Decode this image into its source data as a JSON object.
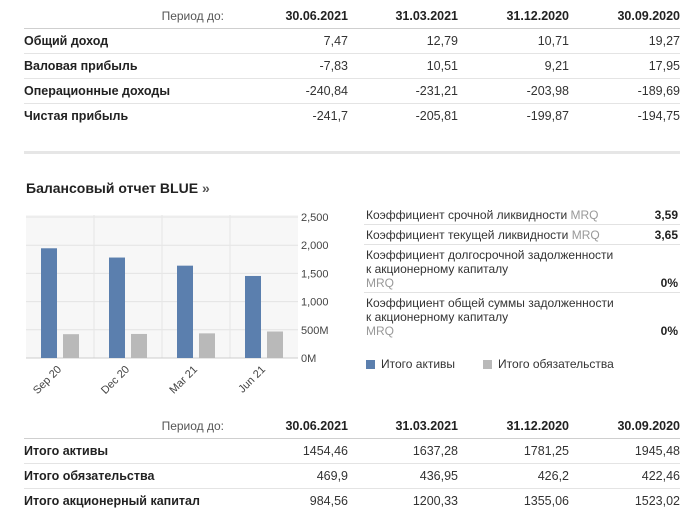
{
  "income": {
    "period_label": "Период до:",
    "dates": [
      "30.06.2021",
      "31.03.2021",
      "31.12.2020",
      "30.09.2020"
    ],
    "rows": [
      {
        "label": "Общий доход",
        "values": [
          "7,47",
          "12,79",
          "10,71",
          "19,27"
        ]
      },
      {
        "label": "Валовая прибыль",
        "values": [
          "-7,83",
          "10,51",
          "9,21",
          "17,95"
        ]
      },
      {
        "label": "Операционные доходы",
        "values": [
          "-240,84",
          "-231,21",
          "-203,98",
          "-189,69"
        ]
      },
      {
        "label": "Чистая прибыль",
        "values": [
          "-241,7",
          "-205,81",
          "-199,87",
          "-194,75"
        ]
      }
    ]
  },
  "balance_section": {
    "title": "Балансовый отчет BLUE",
    "chevron": "»"
  },
  "chart_data": {
    "type": "bar",
    "categories": [
      "Sep 20",
      "Dec 20",
      "Mar 21",
      "Jun 21"
    ],
    "series": [
      {
        "name": "Итого активы",
        "color": "#5b7fae",
        "values": [
          1945.48,
          1781.25,
          1637.28,
          1454.46
        ]
      },
      {
        "name": "Итого обязательства",
        "color": "#b9b9b9",
        "values": [
          422.46,
          426.2,
          436.95,
          469.9
        ]
      }
    ],
    "y_ticks": [
      "0M",
      "500M",
      "1,000",
      "1,500",
      "2,000",
      "2,500"
    ],
    "ylim": [
      0,
      2500
    ]
  },
  "ratios": [
    {
      "label": "Коэффициент срочной ликвидности",
      "mrq": "MRQ",
      "value": "3,59"
    },
    {
      "label": "Коэффициент текущей ликвидности",
      "mrq": "MRQ",
      "value": "3,65"
    },
    {
      "label": "Коэффициент долгосрочной задолженности к акционерному капиталу",
      "mrq": "MRQ",
      "value": "0%"
    },
    {
      "label": "Коэффициент общей суммы задолженности к акционерному капиталу",
      "mrq": "MRQ",
      "value": "0%"
    }
  ],
  "legend": {
    "assets": "Итого активы",
    "liabilities": "Итого обязательства"
  },
  "balance": {
    "period_label": "Период до:",
    "dates": [
      "30.06.2021",
      "31.03.2021",
      "31.12.2020",
      "30.09.2020"
    ],
    "rows": [
      {
        "label": "Итого активы",
        "values": [
          "1454,46",
          "1637,28",
          "1781,25",
          "1945,48"
        ]
      },
      {
        "label": "Итого обязательства",
        "values": [
          "469,9",
          "436,95",
          "426,2",
          "422,46"
        ]
      },
      {
        "label": "Итого акционерный капитал",
        "values": [
          "984,56",
          "1200,33",
          "1355,06",
          "1523,02"
        ]
      }
    ]
  }
}
